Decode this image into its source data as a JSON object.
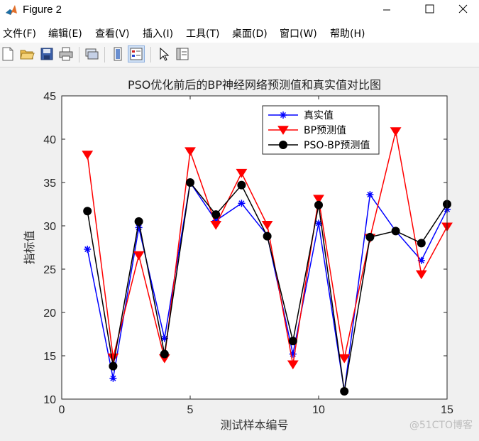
{
  "window": {
    "title": "Figure 2"
  },
  "menu": [
    "文件(F)",
    "编辑(E)",
    "查看(V)",
    "插入(I)",
    "工具(T)",
    "桌面(D)",
    "窗口(W)",
    "帮助(H)"
  ],
  "toolbar": {
    "icons": [
      "new-figure-icon",
      "open-file-icon",
      "save-icon",
      "print-icon",
      "link-plot-icon",
      "colorbar-icon",
      "legend-icon",
      "pointer-icon",
      "property-editor-icon"
    ]
  },
  "watermark": "@51CTO博客",
  "chart_data": {
    "type": "line",
    "title": "PSO优化前后的BP神经网络预测值和真实值对比图",
    "xlabel": "测试样本编号",
    "ylabel": "指标值",
    "xlim": [
      0,
      15
    ],
    "ylim": [
      10,
      45
    ],
    "xticks": [
      0,
      5,
      10,
      15
    ],
    "yticks": [
      10,
      15,
      20,
      25,
      30,
      35,
      40,
      45
    ],
    "grid": false,
    "legend_position": "top-right",
    "x": [
      1,
      2,
      3,
      4,
      5,
      6,
      7,
      8,
      9,
      10,
      11,
      12,
      13,
      14,
      15
    ],
    "series": [
      {
        "name": "真实值",
        "color": "#0000ff",
        "marker": "asterisk",
        "values": [
          27.3,
          12.4,
          29.8,
          17.0,
          35.0,
          30.6,
          32.6,
          28.9,
          15.2,
          30.3,
          10.9,
          33.6,
          29.4,
          26.0,
          31.9
        ]
      },
      {
        "name": "BP预测值",
        "color": "#ff0000",
        "marker": "triangle-down",
        "values": [
          38.2,
          14.8,
          26.6,
          14.7,
          38.6,
          30.1,
          36.1,
          30.1,
          14.0,
          33.1,
          14.7,
          28.6,
          40.9,
          24.4,
          29.9
        ]
      },
      {
        "name": "PSO-BP预测值",
        "color": "#000000",
        "marker": "circle",
        "values": [
          31.7,
          13.8,
          30.5,
          15.2,
          35.0,
          31.3,
          34.7,
          28.8,
          16.7,
          32.4,
          10.9,
          28.7,
          29.4,
          28.0,
          32.5
        ]
      }
    ]
  }
}
